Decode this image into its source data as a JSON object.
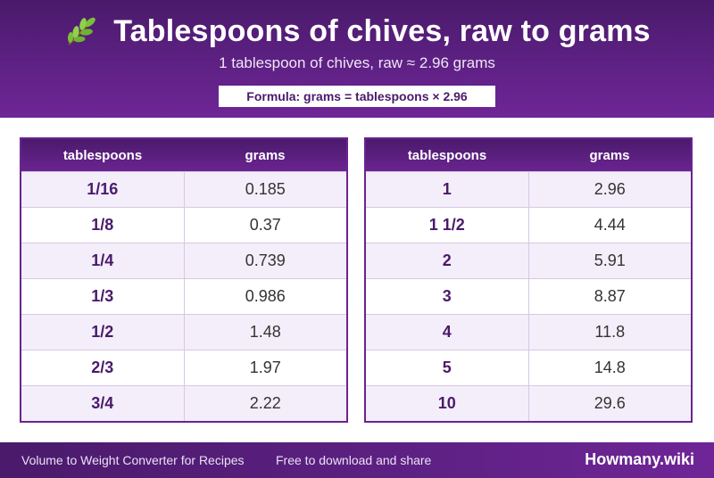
{
  "header": {
    "icon": "herb-leaf-icon",
    "title": "Tablespoons of chives, raw to grams",
    "subtitle": "1 tablespoon of chives, raw ≈ 2.96 grams",
    "formula": "Formula: grams = tablespoons × 2.96"
  },
  "tables": {
    "col_tbsp": "tablespoons",
    "col_grams": "grams",
    "left": [
      {
        "tbsp": "1/16",
        "grams": "0.185"
      },
      {
        "tbsp": "1/8",
        "grams": "0.37"
      },
      {
        "tbsp": "1/4",
        "grams": "0.739"
      },
      {
        "tbsp": "1/3",
        "grams": "0.986"
      },
      {
        "tbsp": "1/2",
        "grams": "1.48"
      },
      {
        "tbsp": "2/3",
        "grams": "1.97"
      },
      {
        "tbsp": "3/4",
        "grams": "2.22"
      }
    ],
    "right": [
      {
        "tbsp": "1",
        "grams": "2.96"
      },
      {
        "tbsp": "1 1/2",
        "grams": "4.44"
      },
      {
        "tbsp": "2",
        "grams": "5.91"
      },
      {
        "tbsp": "3",
        "grams": "8.87"
      },
      {
        "tbsp": "4",
        "grams": "11.8"
      },
      {
        "tbsp": "5",
        "grams": "14.8"
      },
      {
        "tbsp": "10",
        "grams": "29.6"
      }
    ]
  },
  "footer": {
    "left_text": "Volume to Weight Converter for Recipes",
    "mid_text": "Free to download and share",
    "brand": "Howmany.wiki"
  },
  "colors": {
    "primary": "#5e2184",
    "accent_text": "#4a1a6b",
    "stripe": "#f4eefa"
  }
}
